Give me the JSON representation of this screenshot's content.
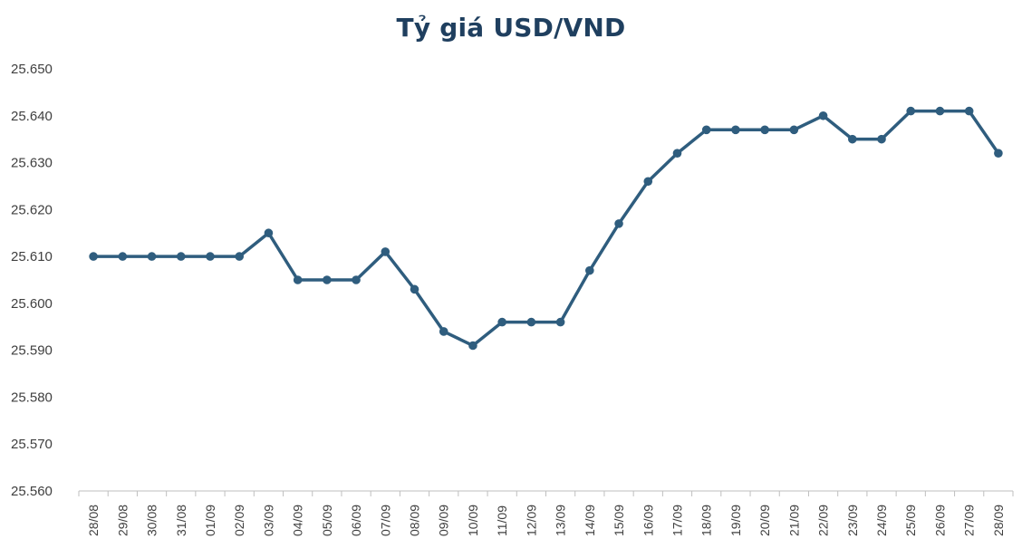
{
  "chart_data": {
    "type": "line",
    "title": "Tỷ giá USD/VND",
    "xlabel": "",
    "ylabel": "",
    "ylim": [
      25560,
      25650
    ],
    "yticks": [
      25560,
      25570,
      25580,
      25590,
      25600,
      25610,
      25620,
      25630,
      25640,
      25650
    ],
    "ytick_labels": [
      "25.560",
      "25.570",
      "25.580",
      "25.590",
      "25.600",
      "25.610",
      "25.620",
      "25.630",
      "25.640",
      "25.650"
    ],
    "grid": false,
    "legend": "none",
    "line_color": "#2f5d7e",
    "categories": [
      "28/08",
      "29/08",
      "30/08",
      "31/08",
      "01/09",
      "02/09",
      "03/09",
      "04/09",
      "05/09",
      "06/09",
      "07/09",
      "08/09",
      "09/09",
      "10/09",
      "11/09",
      "12/09",
      "13/09",
      "14/09",
      "15/09",
      "16/09",
      "17/09",
      "18/09",
      "19/09",
      "20/09",
      "21/09",
      "22/09",
      "23/09",
      "24/09",
      "25/09",
      "26/09",
      "27/09",
      "28/09"
    ],
    "series": [
      {
        "values": [
          25610,
          25610,
          25610,
          25610,
          25610,
          25610,
          25615,
          25605,
          25605,
          25605,
          25611,
          25603,
          25594,
          25591,
          25596,
          25596,
          25596,
          25607,
          25617,
          25626,
          25632,
          25637,
          25637,
          25637,
          25637,
          25640,
          25635,
          25635,
          25641,
          25641,
          25641,
          25632
        ]
      }
    ]
  }
}
